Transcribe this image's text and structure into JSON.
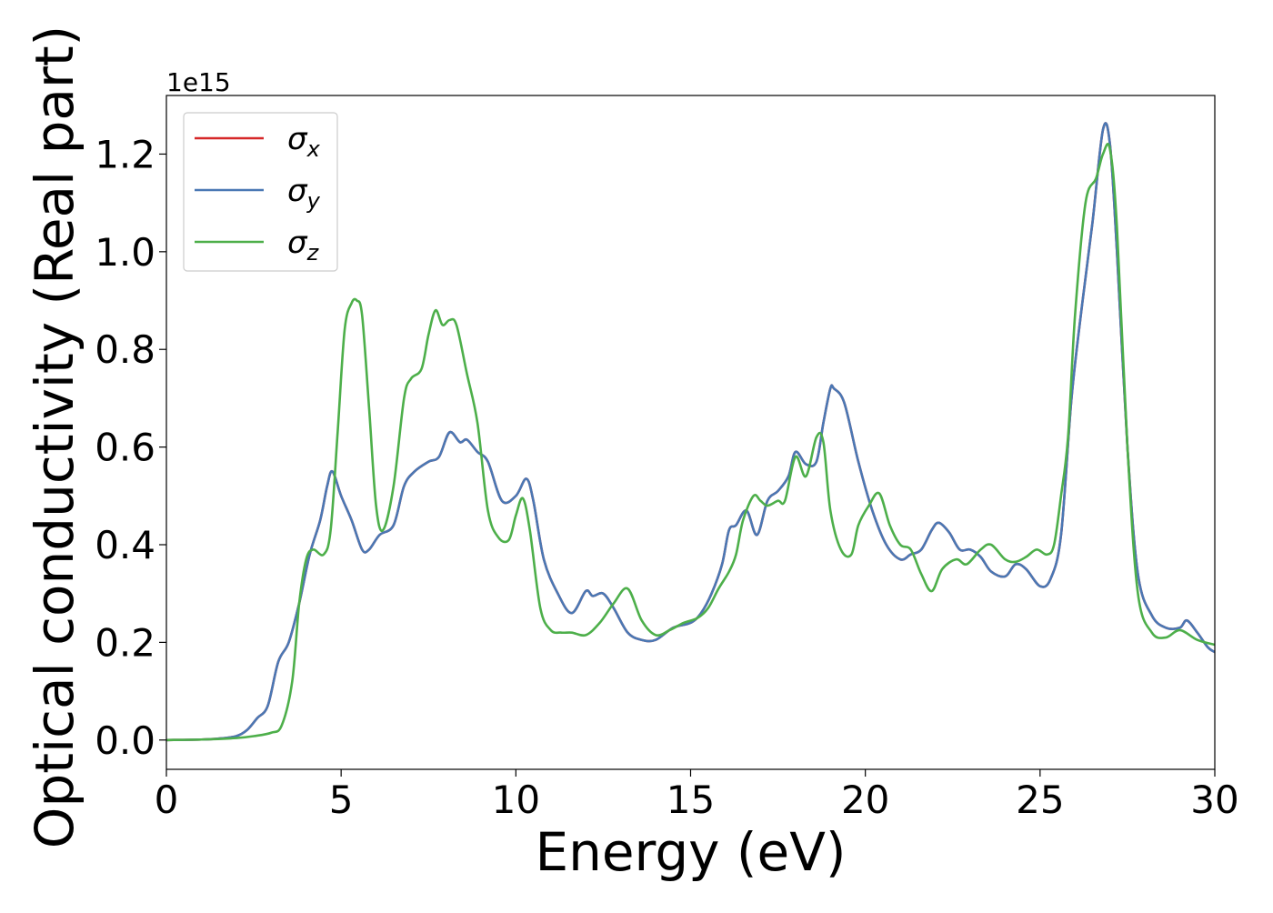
{
  "chart_data": {
    "type": "line",
    "title": "",
    "xlabel": "Energy (eV)",
    "ylabel": "Optical conductivity (Real part)",
    "offset_label": "1e15",
    "xlim": [
      0,
      30
    ],
    "ylim": [
      -0.06,
      1.32
    ],
    "xticks": [
      0,
      5,
      10,
      15,
      20,
      25,
      30
    ],
    "yticks": [
      0.0,
      0.2,
      0.4,
      0.6,
      0.8,
      1.0,
      1.2
    ],
    "xtick_labels": [
      "0",
      "5",
      "10",
      "15",
      "20",
      "25",
      "30"
    ],
    "ytick_labels": [
      "0.0",
      "0.2",
      "0.4",
      "0.6",
      "0.8",
      "1.0",
      "1.2"
    ],
    "grid": false,
    "legend_position": "top-left",
    "series": [
      {
        "name": "σx",
        "symbol": "σ",
        "subscript": "x",
        "color": "#d62728",
        "x": [
          0,
          1,
          1.5,
          2,
          2.3,
          2.6,
          2.9,
          3.2,
          3.5,
          3.8,
          4.1,
          4.4,
          4.6,
          4.75,
          5.0,
          5.3,
          5.6,
          5.8,
          6.1,
          6.5,
          6.8,
          7.1,
          7.5,
          7.8,
          8.1,
          8.4,
          8.6,
          8.9,
          9.2,
          9.6,
          10.0,
          10.3,
          10.5,
          10.8,
          11.2,
          11.6,
          12.0,
          12.2,
          12.5,
          12.8,
          13.2,
          13.6,
          14.0,
          14.5,
          15.0,
          15.3,
          15.6,
          15.9,
          16.1,
          16.3,
          16.6,
          16.9,
          17.2,
          17.5,
          17.8,
          18.0,
          18.3,
          18.6,
          18.8,
          19.0,
          19.1,
          19.4,
          19.8,
          20.2,
          20.6,
          21.0,
          21.3,
          21.6,
          21.9,
          22.1,
          22.4,
          22.7,
          23.0,
          23.3,
          23.6,
          24.0,
          24.3,
          24.6,
          25.0,
          25.3,
          25.6,
          25.9,
          26.2,
          26.5,
          26.8,
          27.0,
          27.2,
          27.5,
          27.8,
          28.2,
          28.6,
          29.0,
          29.2,
          29.5,
          29.8,
          30
        ],
        "values": [
          0,
          0.001,
          0.003,
          0.008,
          0.02,
          0.045,
          0.07,
          0.16,
          0.2,
          0.28,
          0.38,
          0.45,
          0.52,
          0.55,
          0.5,
          0.45,
          0.39,
          0.39,
          0.42,
          0.44,
          0.52,
          0.55,
          0.57,
          0.58,
          0.63,
          0.61,
          0.615,
          0.59,
          0.57,
          0.49,
          0.5,
          0.535,
          0.49,
          0.37,
          0.3,
          0.26,
          0.305,
          0.295,
          0.3,
          0.27,
          0.22,
          0.205,
          0.205,
          0.23,
          0.24,
          0.26,
          0.3,
          0.36,
          0.43,
          0.44,
          0.47,
          0.42,
          0.49,
          0.51,
          0.54,
          0.59,
          0.565,
          0.57,
          0.65,
          0.72,
          0.72,
          0.69,
          0.57,
          0.47,
          0.4,
          0.37,
          0.38,
          0.39,
          0.43,
          0.445,
          0.425,
          0.39,
          0.39,
          0.375,
          0.345,
          0.335,
          0.36,
          0.35,
          0.315,
          0.33,
          0.42,
          0.7,
          0.89,
          1.06,
          1.25,
          1.22,
          1.0,
          0.6,
          0.34,
          0.255,
          0.23,
          0.23,
          0.245,
          0.22,
          0.19,
          0.18
        ]
      },
      {
        "name": "σy",
        "symbol": "σ",
        "subscript": "y",
        "color": "#4a78b4",
        "x": [
          0,
          1,
          1.5,
          2,
          2.3,
          2.6,
          2.9,
          3.2,
          3.5,
          3.8,
          4.1,
          4.4,
          4.6,
          4.75,
          5.0,
          5.3,
          5.6,
          5.8,
          6.1,
          6.5,
          6.8,
          7.1,
          7.5,
          7.8,
          8.1,
          8.4,
          8.6,
          8.9,
          9.2,
          9.6,
          10.0,
          10.3,
          10.5,
          10.8,
          11.2,
          11.6,
          12.0,
          12.2,
          12.5,
          12.8,
          13.2,
          13.6,
          14.0,
          14.5,
          15.0,
          15.3,
          15.6,
          15.9,
          16.1,
          16.3,
          16.6,
          16.9,
          17.2,
          17.5,
          17.8,
          18.0,
          18.3,
          18.6,
          18.8,
          19.0,
          19.1,
          19.4,
          19.8,
          20.2,
          20.6,
          21.0,
          21.3,
          21.6,
          21.9,
          22.1,
          22.4,
          22.7,
          23.0,
          23.3,
          23.6,
          24.0,
          24.3,
          24.6,
          25.0,
          25.3,
          25.6,
          25.9,
          26.2,
          26.5,
          26.8,
          27.0,
          27.2,
          27.5,
          27.8,
          28.2,
          28.6,
          29.0,
          29.2,
          29.5,
          29.8,
          30
        ],
        "values": [
          0,
          0.001,
          0.003,
          0.008,
          0.02,
          0.045,
          0.07,
          0.16,
          0.2,
          0.28,
          0.38,
          0.45,
          0.52,
          0.55,
          0.5,
          0.45,
          0.39,
          0.39,
          0.42,
          0.44,
          0.52,
          0.55,
          0.57,
          0.58,
          0.63,
          0.61,
          0.615,
          0.59,
          0.57,
          0.49,
          0.5,
          0.535,
          0.49,
          0.37,
          0.3,
          0.26,
          0.305,
          0.295,
          0.3,
          0.27,
          0.22,
          0.205,
          0.205,
          0.23,
          0.24,
          0.26,
          0.3,
          0.36,
          0.43,
          0.44,
          0.47,
          0.42,
          0.49,
          0.51,
          0.54,
          0.59,
          0.565,
          0.57,
          0.65,
          0.72,
          0.72,
          0.69,
          0.57,
          0.47,
          0.4,
          0.37,
          0.38,
          0.39,
          0.43,
          0.445,
          0.425,
          0.39,
          0.39,
          0.375,
          0.345,
          0.335,
          0.36,
          0.35,
          0.315,
          0.33,
          0.42,
          0.7,
          0.89,
          1.06,
          1.25,
          1.22,
          1.0,
          0.6,
          0.34,
          0.255,
          0.23,
          0.23,
          0.245,
          0.22,
          0.19,
          0.18
        ]
      },
      {
        "name": "σz",
        "symbol": "σ",
        "subscript": "z",
        "color": "#4daf4a",
        "x": [
          0,
          1,
          2,
          2.5,
          3.0,
          3.3,
          3.6,
          3.8,
          4.0,
          4.2,
          4.5,
          4.7,
          4.9,
          5.1,
          5.3,
          5.45,
          5.6,
          5.8,
          6.0,
          6.2,
          6.5,
          6.8,
          7.0,
          7.3,
          7.5,
          7.7,
          7.9,
          8.1,
          8.3,
          8.6,
          8.9,
          9.2,
          9.5,
          9.8,
          10.0,
          10.2,
          10.4,
          10.7,
          11.0,
          11.3,
          11.6,
          12.0,
          12.4,
          12.8,
          13.2,
          13.6,
          14.0,
          14.4,
          14.8,
          15.2,
          15.5,
          15.8,
          16.1,
          16.3,
          16.5,
          16.8,
          17.0,
          17.2,
          17.5,
          17.7,
          18.0,
          18.3,
          18.6,
          18.8,
          19.0,
          19.3,
          19.6,
          19.8,
          20.1,
          20.4,
          20.7,
          21.0,
          21.3,
          21.6,
          21.9,
          22.2,
          22.6,
          22.9,
          23.3,
          23.6,
          24.0,
          24.3,
          24.6,
          24.9,
          25.2,
          25.4,
          25.6,
          25.8,
          26.0,
          26.3,
          26.6,
          26.8,
          27.0,
          27.2,
          27.5,
          27.8,
          28.2,
          28.6,
          29.0,
          29.5,
          30
        ],
        "values": [
          0,
          0.001,
          0.004,
          0.008,
          0.015,
          0.03,
          0.12,
          0.28,
          0.37,
          0.39,
          0.38,
          0.43,
          0.63,
          0.84,
          0.895,
          0.9,
          0.87,
          0.68,
          0.48,
          0.43,
          0.52,
          0.7,
          0.74,
          0.76,
          0.83,
          0.88,
          0.85,
          0.86,
          0.85,
          0.75,
          0.65,
          0.47,
          0.415,
          0.41,
          0.46,
          0.495,
          0.43,
          0.27,
          0.225,
          0.22,
          0.22,
          0.215,
          0.24,
          0.28,
          0.31,
          0.245,
          0.215,
          0.225,
          0.24,
          0.25,
          0.27,
          0.31,
          0.345,
          0.38,
          0.45,
          0.5,
          0.49,
          0.48,
          0.49,
          0.49,
          0.58,
          0.54,
          0.62,
          0.61,
          0.47,
          0.39,
          0.38,
          0.44,
          0.48,
          0.505,
          0.44,
          0.4,
          0.39,
          0.34,
          0.305,
          0.35,
          0.37,
          0.36,
          0.39,
          0.4,
          0.37,
          0.365,
          0.375,
          0.39,
          0.38,
          0.4,
          0.5,
          0.62,
          0.87,
          1.1,
          1.15,
          1.2,
          1.21,
          1.05,
          0.6,
          0.3,
          0.22,
          0.21,
          0.225,
          0.205,
          0.195
        ]
      }
    ]
  }
}
